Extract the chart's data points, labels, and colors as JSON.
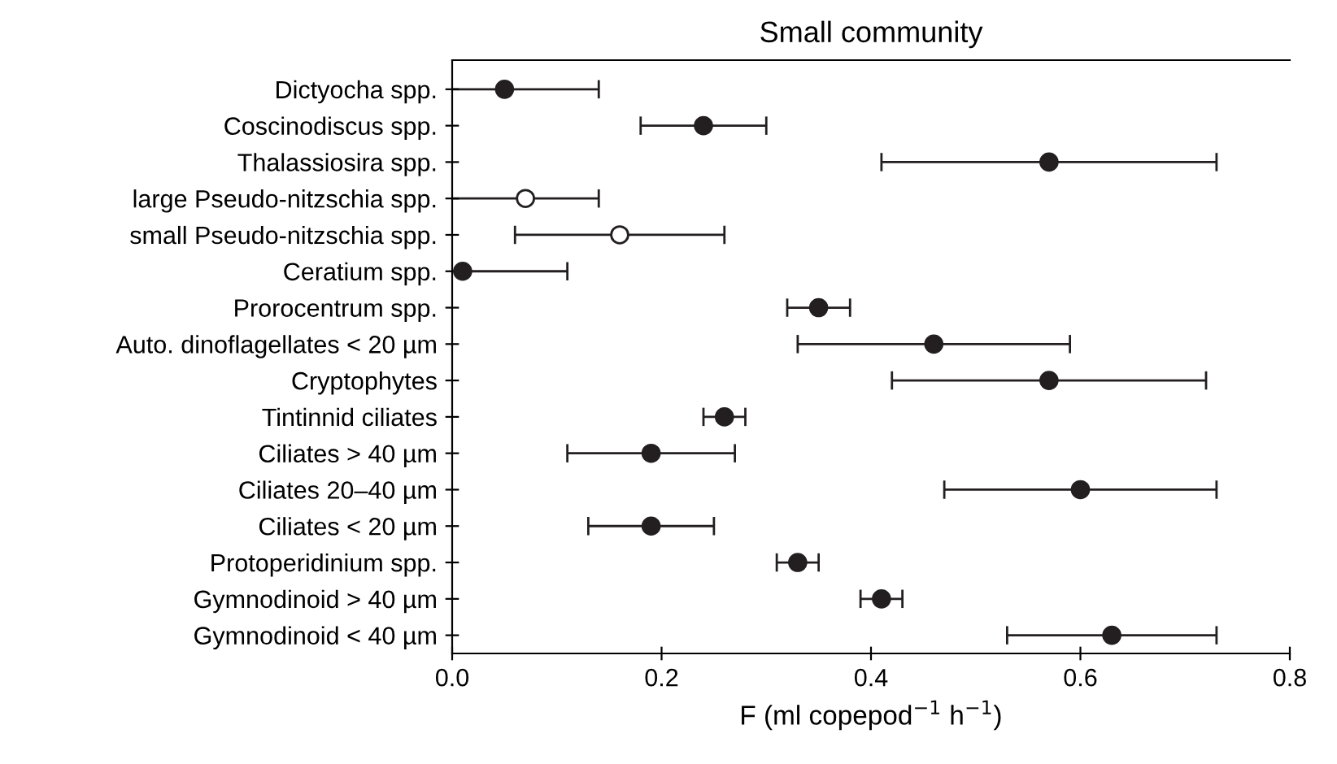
{
  "chart_data": {
    "type": "scatter",
    "title": "Small community",
    "xlabel": "F (ml copepod$^{−1}$ h$^{−1}$)",
    "orientation": "horizontal",
    "categories": [
      "Dictyocha spp.",
      "Coscinodiscus spp.",
      "Thalassiosira spp.",
      "large Pseudo-nitzschia spp.",
      "small Pseudo-nitzschia spp.",
      "Ceratium spp.",
      "Prorocentrum spp.",
      "Auto. dinoflagellates < 20 µm",
      "Cryptophytes",
      "Tintinnid ciliates",
      "Ciliates > 40 µm",
      "Ciliates 20–40 µm",
      "Ciliates < 20 µm",
      "Protoperidinium spp.",
      "Gymnodinoid > 40 µm",
      "Gymnodinoid < 40 µm"
    ],
    "series": [
      {
        "color": "#231f20",
        "values": [
          0.05,
          0.24,
          0.57,
          null,
          null,
          0.01,
          0.35,
          0.46,
          0.57,
          0.26,
          0.19,
          0.6,
          0.19,
          0.33,
          0.41,
          0.63
        ],
        "errors": [
          [
            0,
            0.14
          ],
          [
            0.18,
            0.3
          ],
          [
            0.41,
            0.73
          ],
          null,
          null,
          [
            0,
            0.11
          ],
          [
            0.32,
            0.38
          ],
          [
            0.33,
            0.59
          ],
          [
            0.42,
            0.72
          ],
          [
            0.24,
            0.28
          ],
          [
            0.11,
            0.27
          ],
          [
            0.47,
            0.73
          ],
          [
            0.13,
            0.25
          ],
          [
            0.31,
            0.35
          ],
          [
            0.39,
            0.43
          ],
          [
            0.53,
            0.73
          ]
        ]
      },
      {
        "color": "#ffffff",
        "values": [
          null,
          null,
          null,
          0.07,
          0.16,
          null,
          null,
          null,
          null,
          null,
          null,
          null,
          null,
          null,
          null,
          null
        ],
        "errors": [
          null,
          null,
          null,
          [
            0,
            0.14
          ],
          [
            0.06,
            0.26
          ],
          null,
          null,
          null,
          null,
          null,
          null,
          null,
          null,
          null,
          null,
          null
        ]
      }
    ],
    "xlim": [
      0,
      0.8
    ],
    "xticks": [
      {
        "value": 0,
        "label": "0.0"
      },
      0.2,
      0.4,
      0.6,
      0.8
    ],
    "marker": "circle",
    "grid": false,
    "legend": false
  }
}
